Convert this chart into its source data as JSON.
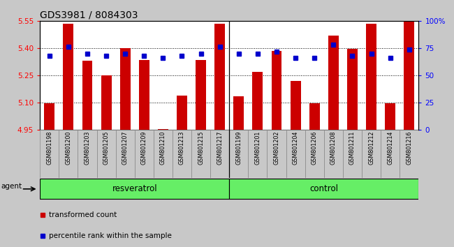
{
  "title": "GDS3981 / 8084303",
  "categories": [
    "GSM801198",
    "GSM801200",
    "GSM801203",
    "GSM801205",
    "GSM801207",
    "GSM801209",
    "GSM801210",
    "GSM801213",
    "GSM801215",
    "GSM801217",
    "GSM801199",
    "GSM801201",
    "GSM801202",
    "GSM801204",
    "GSM801206",
    "GSM801208",
    "GSM801211",
    "GSM801212",
    "GSM801214",
    "GSM801216"
  ],
  "bar_values": [
    5.095,
    5.535,
    5.33,
    5.25,
    5.4,
    5.335,
    4.955,
    5.14,
    5.335,
    5.535,
    5.135,
    5.27,
    5.385,
    5.22,
    5.095,
    5.47,
    5.395,
    5.535,
    5.095,
    5.545
  ],
  "percentile_values": [
    68,
    76,
    70,
    68,
    70,
    68,
    66,
    68,
    70,
    76,
    70,
    70,
    72,
    66,
    66,
    78,
    68,
    70,
    66,
    74
  ],
  "ylim_left": [
    4.95,
    5.55
  ],
  "ylim_right": [
    0,
    100
  ],
  "bar_color": "#cc0000",
  "dot_color": "#0000cc",
  "group1_label": "resveratrol",
  "group2_label": "control",
  "group1_count": 10,
  "group2_count": 10,
  "agent_label": "agent",
  "legend_bar": "transformed count",
  "legend_dot": "percentile rank within the sample",
  "yticks_left": [
    4.95,
    5.1,
    5.25,
    5.4,
    5.55
  ],
  "yticks_right": [
    0,
    25,
    50,
    75,
    100
  ],
  "fig_bg": "#c8c8c8",
  "plot_bg": "#ffffff",
  "xtick_bg": "#c0c0c0",
  "group_bg": "#66ee66",
  "title_fontsize": 10,
  "bar_width": 0.55
}
